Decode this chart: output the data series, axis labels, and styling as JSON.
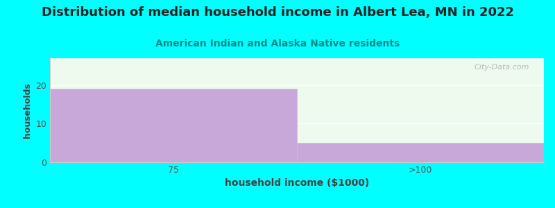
{
  "title": "Distribution of median household income in Albert Lea, MN in 2022",
  "subtitle": "American Indian and Alaska Native residents",
  "xlabel": "household income ($1000)",
  "ylabel": "households",
  "categories": [
    "75",
    ">100"
  ],
  "values": [
    19,
    5
  ],
  "bar_color": "#c8a8d8",
  "background_color": "#00ffff",
  "plot_bg_color": "#edfaed",
  "ylim": [
    0,
    27
  ],
  "yticks": [
    0,
    10,
    20
  ],
  "title_fontsize": 13,
  "subtitle_fontsize": 10,
  "subtitle_color": "#008888",
  "axis_label_color": "#404040",
  "tick_color": "#505050",
  "watermark": "City-Data.com"
}
